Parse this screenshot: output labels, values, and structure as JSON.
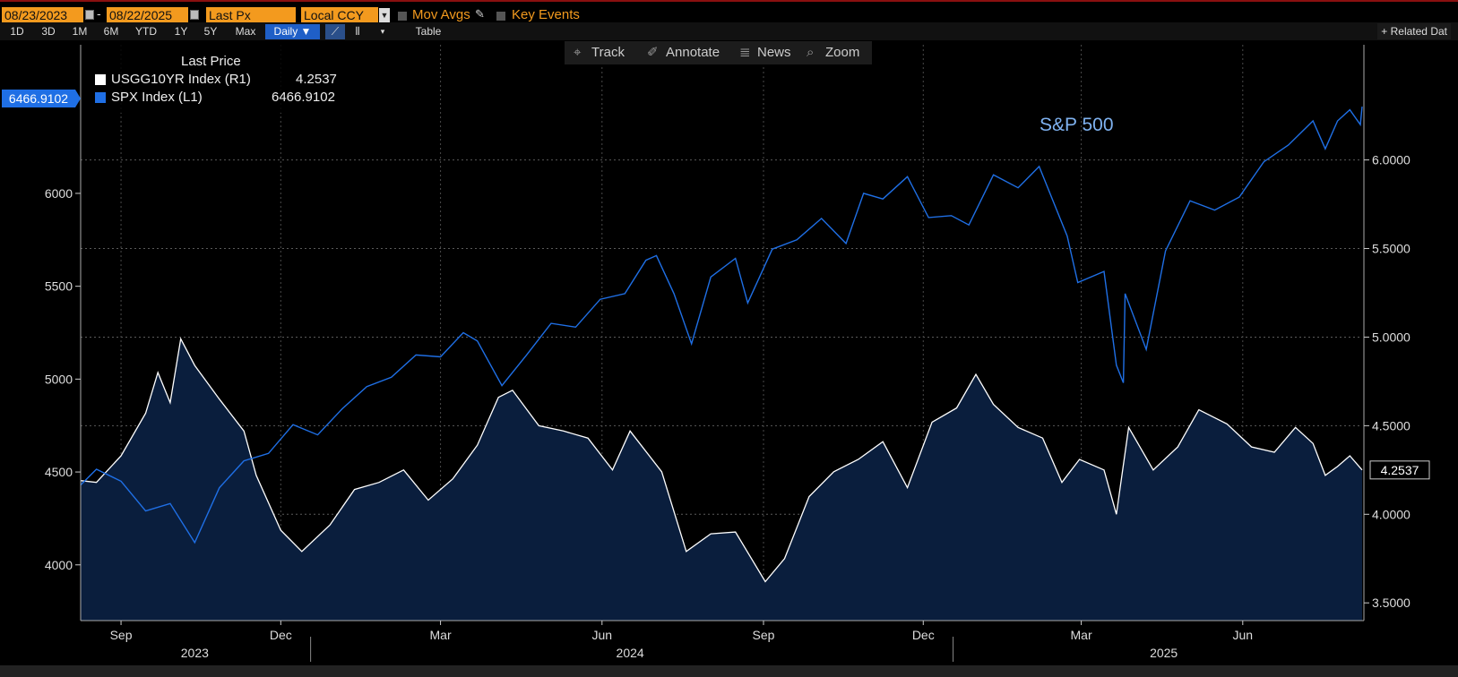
{
  "toolbar": {
    "start_date": "08/23/2023",
    "end_date": "08/22/2025",
    "field": "Last Px",
    "currency": "Local CCY",
    "mov_avgs": "Mov Avgs",
    "key_events": "Key Events",
    "ranges": [
      "1D",
      "3D",
      "1M",
      "6M",
      "YTD",
      "1Y",
      "5Y",
      "Max"
    ],
    "frequency": "Daily ▼",
    "table": "Table",
    "related": "+ Related Dat",
    "track": "Track",
    "annotate": "Annotate",
    "news": "News",
    "zoom": "Zoom"
  },
  "legend": {
    "title": "Last Price",
    "rows": [
      {
        "name": "USGG10YR Index  (R1)",
        "value": "4.2537",
        "color": "#ffffff"
      },
      {
        "name": "SPX Index  (L1)",
        "value": "6466.9102",
        "color": "#1f6fe5"
      }
    ]
  },
  "annotation": "S&P 500",
  "chart_data": {
    "type": "line",
    "x_range": [
      "2023-08-23",
      "2025-08-22"
    ],
    "left_axis": {
      "ticks": [
        4000,
        4500,
        5000,
        5500,
        6000
      ],
      "range": [
        3700,
        6800
      ]
    },
    "right_axis": {
      "ticks": [
        "3.5000",
        "4.0000",
        "4.5000",
        "5.0000",
        "5.5000",
        "6.0000"
      ],
      "range": [
        3.4,
        6.65
      ]
    },
    "month_labels": [
      {
        "label": "Sep",
        "date": "2023-09-15"
      },
      {
        "label": "Dec",
        "date": "2023-12-15"
      },
      {
        "label": "Mar",
        "date": "2024-03-15"
      },
      {
        "label": "Jun",
        "date": "2024-06-15"
      },
      {
        "label": "Sep",
        "date": "2024-09-15"
      },
      {
        "label": "Dec",
        "date": "2024-12-15"
      },
      {
        "label": "Mar",
        "date": "2025-03-15"
      },
      {
        "label": "Jun",
        "date": "2025-06-15"
      }
    ],
    "year_labels": [
      {
        "label": "2023",
        "date": "2023-10-27"
      },
      {
        "label": "2024",
        "date": "2024-07-01"
      },
      {
        "label": "2025",
        "date": "2025-05-01"
      }
    ],
    "last_value_tags": {
      "left": "6466.9102",
      "right": "4.2537"
    },
    "series": [
      {
        "name": "SPX Index",
        "axis": "left",
        "color": "#1f6fe5",
        "points": [
          [
            "2023-08-23",
            4430
          ],
          [
            "2023-09-01",
            4515
          ],
          [
            "2023-09-15",
            4450
          ],
          [
            "2023-09-29",
            4290
          ],
          [
            "2023-10-13",
            4330
          ],
          [
            "2023-10-27",
            4120
          ],
          [
            "2023-11-10",
            4415
          ],
          [
            "2023-11-24",
            4560
          ],
          [
            "2023-12-08",
            4600
          ],
          [
            "2023-12-22",
            4755
          ],
          [
            "2024-01-05",
            4700
          ],
          [
            "2024-01-19",
            4840
          ],
          [
            "2024-02-02",
            4960
          ],
          [
            "2024-02-16",
            5010
          ],
          [
            "2024-03-01",
            5130
          ],
          [
            "2024-03-15",
            5120
          ],
          [
            "2024-03-28",
            5250
          ],
          [
            "2024-04-05",
            5205
          ],
          [
            "2024-04-19",
            4965
          ],
          [
            "2024-05-03",
            5130
          ],
          [
            "2024-05-17",
            5300
          ],
          [
            "2024-05-31",
            5280
          ],
          [
            "2024-06-14",
            5430
          ],
          [
            "2024-06-28",
            5460
          ],
          [
            "2024-07-10",
            5640
          ],
          [
            "2024-07-16",
            5665
          ],
          [
            "2024-07-26",
            5460
          ],
          [
            "2024-08-05",
            5190
          ],
          [
            "2024-08-16",
            5550
          ],
          [
            "2024-08-30",
            5650
          ],
          [
            "2024-09-06",
            5410
          ],
          [
            "2024-09-20",
            5700
          ],
          [
            "2024-10-04",
            5750
          ],
          [
            "2024-10-18",
            5865
          ],
          [
            "2024-11-01",
            5730
          ],
          [
            "2024-11-11",
            6000
          ],
          [
            "2024-11-22",
            5970
          ],
          [
            "2024-12-06",
            6090
          ],
          [
            "2024-12-18",
            5870
          ],
          [
            "2024-12-31",
            5880
          ],
          [
            "2025-01-10",
            5830
          ],
          [
            "2025-01-24",
            6100
          ],
          [
            "2025-02-07",
            6030
          ],
          [
            "2025-02-19",
            6145
          ],
          [
            "2025-03-07",
            5770
          ],
          [
            "2025-03-13",
            5520
          ],
          [
            "2025-03-28",
            5580
          ],
          [
            "2025-04-04",
            5075
          ],
          [
            "2025-04-08",
            4980
          ],
          [
            "2025-04-09",
            5460
          ],
          [
            "2025-04-21",
            5160
          ],
          [
            "2025-05-02",
            5690
          ],
          [
            "2025-05-16",
            5960
          ],
          [
            "2025-05-30",
            5910
          ],
          [
            "2025-06-13",
            5980
          ],
          [
            "2025-06-27",
            6170
          ],
          [
            "2025-07-11",
            6260
          ],
          [
            "2025-07-25",
            6390
          ],
          [
            "2025-08-01",
            6240
          ],
          [
            "2025-08-08",
            6390
          ],
          [
            "2025-08-15",
            6450
          ],
          [
            "2025-08-21",
            6370
          ],
          [
            "2025-08-22",
            6467
          ]
        ]
      },
      {
        "name": "USGG10YR Index",
        "axis": "right",
        "color": "#ffffff",
        "points": [
          [
            "2023-08-23",
            4.19
          ],
          [
            "2023-09-01",
            4.18
          ],
          [
            "2023-09-15",
            4.33
          ],
          [
            "2023-09-29",
            4.57
          ],
          [
            "2023-10-06",
            4.8
          ],
          [
            "2023-10-13",
            4.63
          ],
          [
            "2023-10-19",
            4.99
          ],
          [
            "2023-10-27",
            4.84
          ],
          [
            "2023-11-10",
            4.65
          ],
          [
            "2023-11-24",
            4.47
          ],
          [
            "2023-12-01",
            4.22
          ],
          [
            "2023-12-15",
            3.91
          ],
          [
            "2023-12-27",
            3.79
          ],
          [
            "2024-01-12",
            3.94
          ],
          [
            "2024-01-26",
            4.14
          ],
          [
            "2024-02-09",
            4.18
          ],
          [
            "2024-02-23",
            4.25
          ],
          [
            "2024-03-08",
            4.08
          ],
          [
            "2024-03-22",
            4.2
          ],
          [
            "2024-04-05",
            4.39
          ],
          [
            "2024-04-17",
            4.66
          ],
          [
            "2024-04-25",
            4.7
          ],
          [
            "2024-05-10",
            4.5
          ],
          [
            "2024-05-24",
            4.47
          ],
          [
            "2024-06-07",
            4.43
          ],
          [
            "2024-06-21",
            4.25
          ],
          [
            "2024-07-01",
            4.47
          ],
          [
            "2024-07-19",
            4.24
          ],
          [
            "2024-08-02",
            3.79
          ],
          [
            "2024-08-16",
            3.89
          ],
          [
            "2024-08-30",
            3.9
          ],
          [
            "2024-09-16",
            3.62
          ],
          [
            "2024-09-27",
            3.75
          ],
          [
            "2024-10-11",
            4.1
          ],
          [
            "2024-10-25",
            4.24
          ],
          [
            "2024-11-08",
            4.31
          ],
          [
            "2024-11-22",
            4.41
          ],
          [
            "2024-12-06",
            4.15
          ],
          [
            "2024-12-20",
            4.52
          ],
          [
            "2025-01-03",
            4.6
          ],
          [
            "2025-01-14",
            4.79
          ],
          [
            "2025-01-24",
            4.62
          ],
          [
            "2025-02-07",
            4.49
          ],
          [
            "2025-02-21",
            4.43
          ],
          [
            "2025-03-04",
            4.18
          ],
          [
            "2025-03-14",
            4.31
          ],
          [
            "2025-03-28",
            4.25
          ],
          [
            "2025-04-04",
            4.0
          ],
          [
            "2025-04-11",
            4.49
          ],
          [
            "2025-04-25",
            4.25
          ],
          [
            "2025-05-09",
            4.38
          ],
          [
            "2025-05-21",
            4.59
          ],
          [
            "2025-06-06",
            4.51
          ],
          [
            "2025-06-20",
            4.38
          ],
          [
            "2025-07-03",
            4.35
          ],
          [
            "2025-07-15",
            4.49
          ],
          [
            "2025-07-25",
            4.4
          ],
          [
            "2025-08-01",
            4.22
          ],
          [
            "2025-08-08",
            4.27
          ],
          [
            "2025-08-15",
            4.33
          ],
          [
            "2025-08-22",
            4.25
          ]
        ]
      }
    ]
  }
}
